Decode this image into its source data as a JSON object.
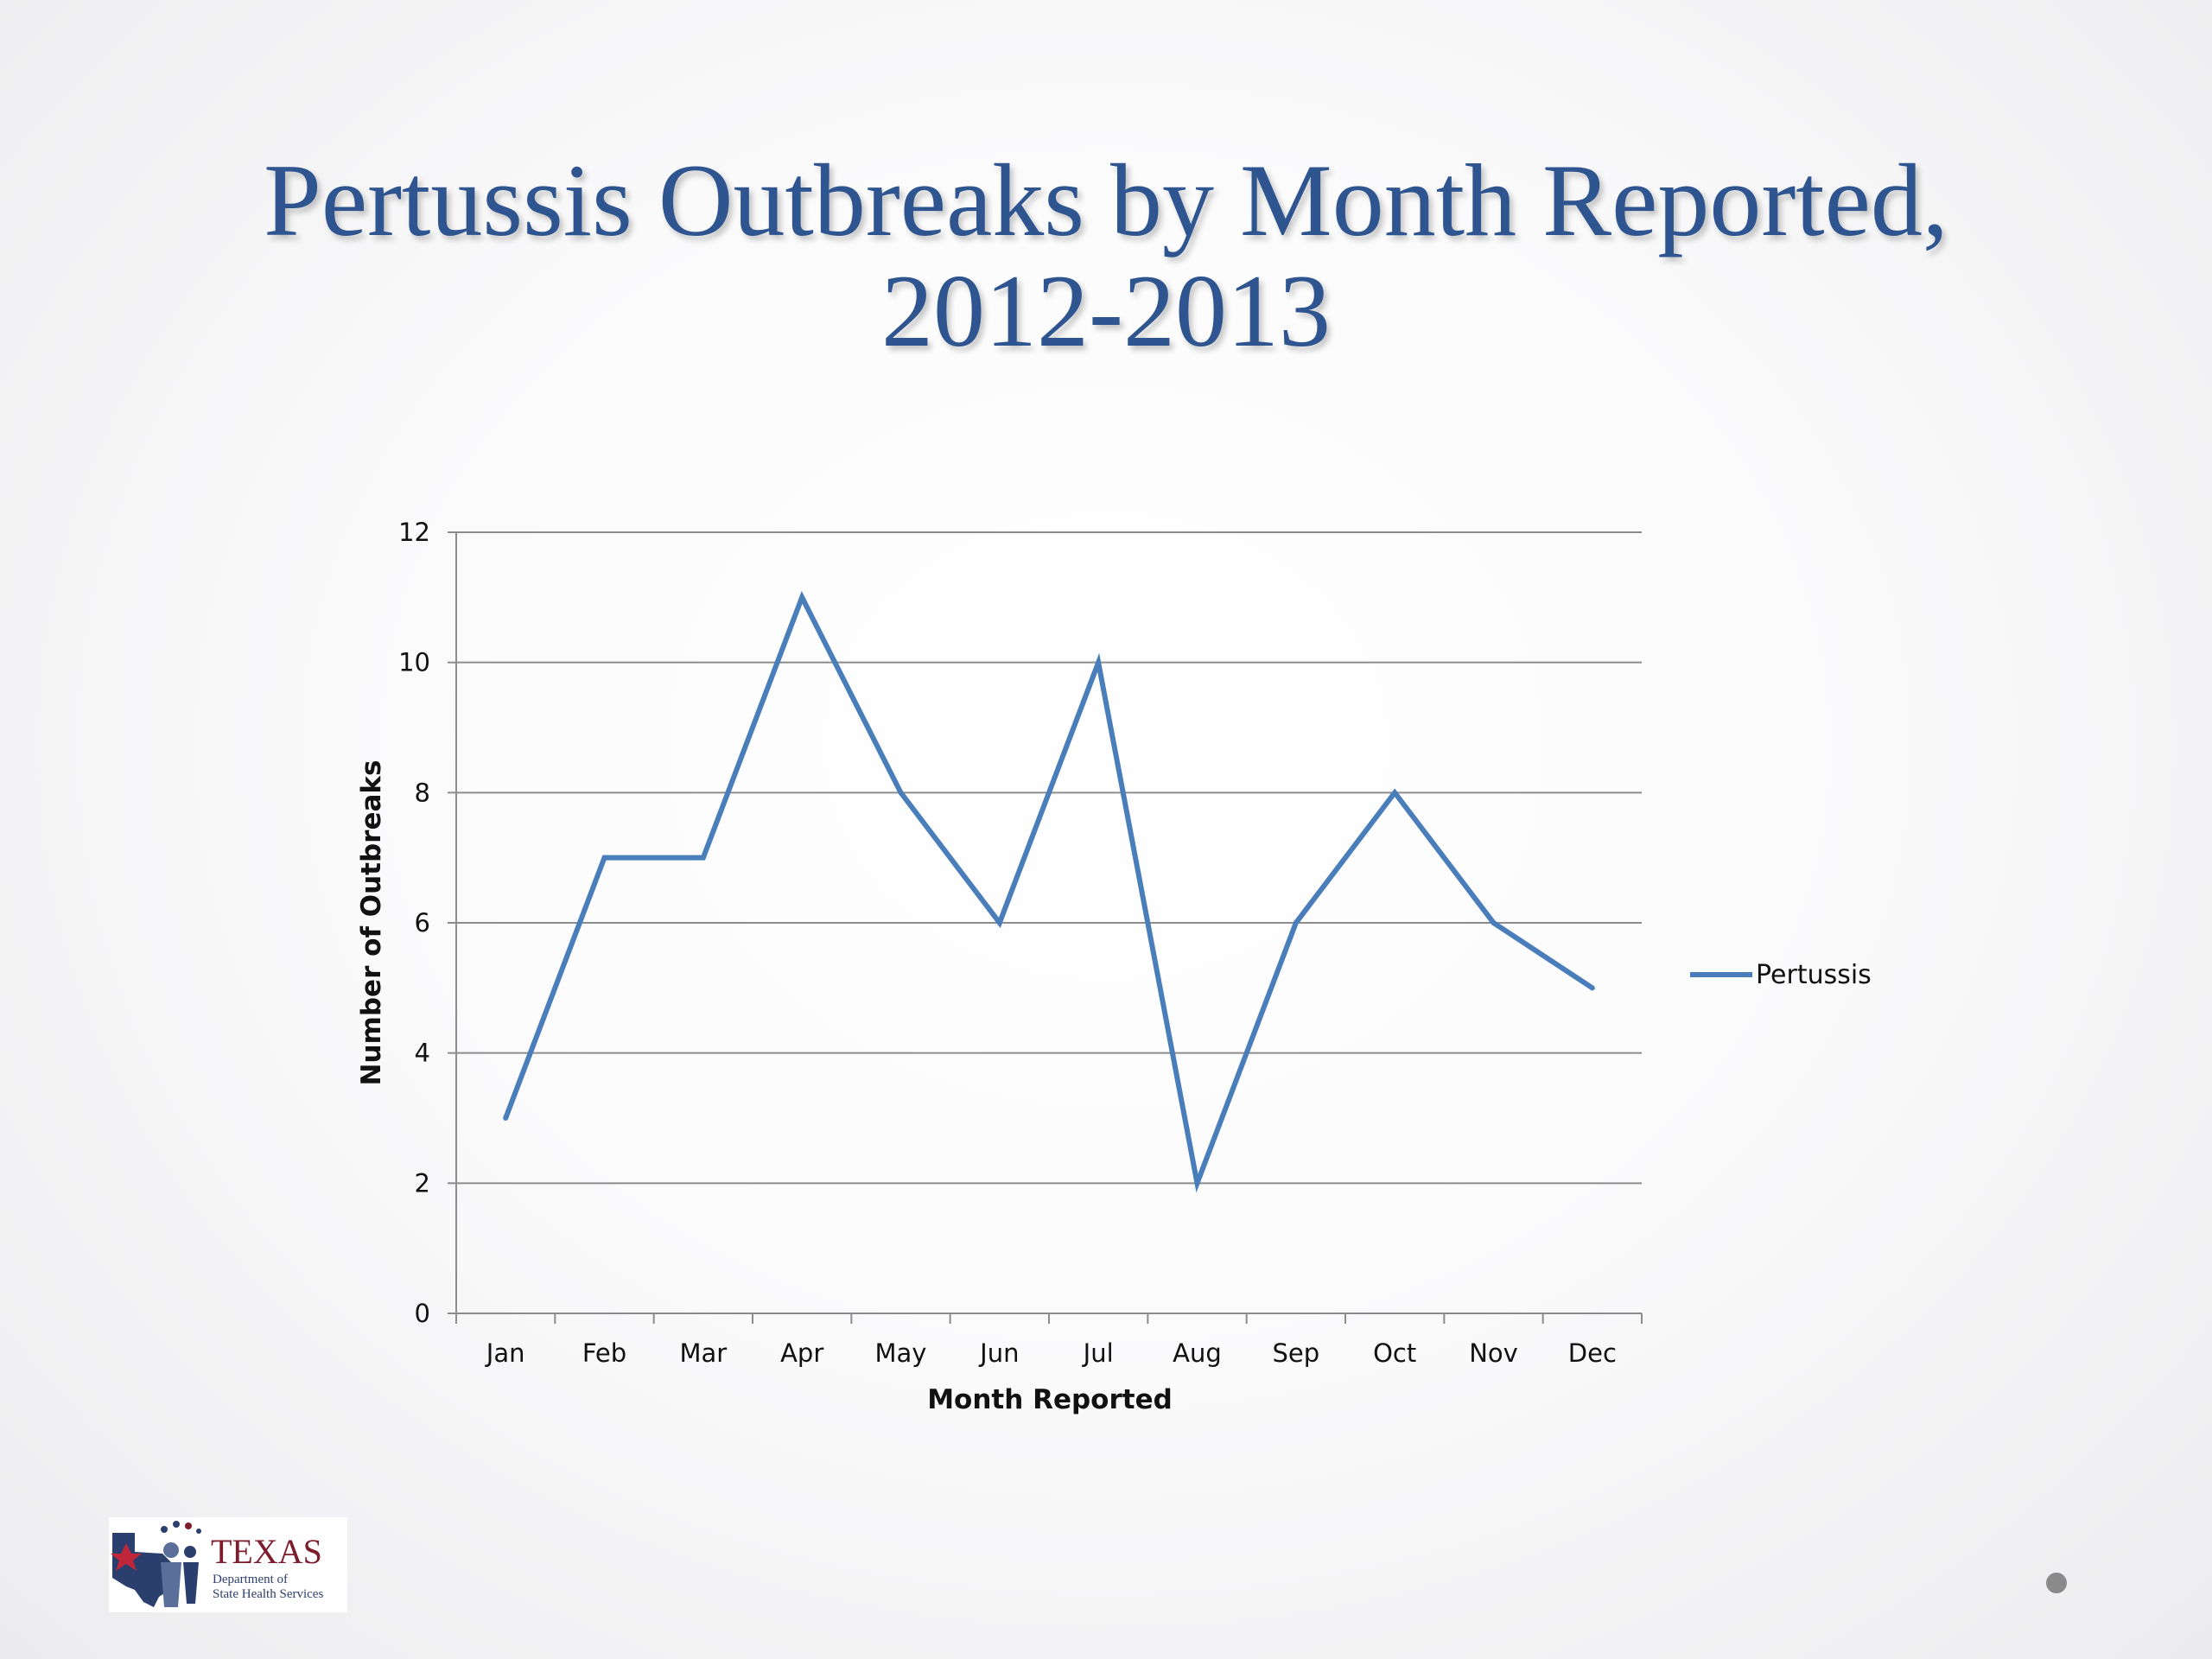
{
  "slide": {
    "title_line1": "Pertussis Outbreaks by Month Reported,",
    "title_line2": "2012-2013"
  },
  "logo": {
    "word": "TEXAS",
    "sub_line1": "Department of",
    "sub_line2": "State Health Services"
  },
  "colors": {
    "title": "#2f5590",
    "series": "#4a7ebb",
    "grid": "#8c8c8c"
  },
  "chart_data": {
    "type": "line",
    "categories": [
      "Jan",
      "Feb",
      "Mar",
      "Apr",
      "May",
      "Jun",
      "Jul",
      "Aug",
      "Sep",
      "Oct",
      "Nov",
      "Dec"
    ],
    "series": [
      {
        "name": "Pertussis",
        "values": [
          3,
          7,
          7,
          11,
          8,
          6,
          10,
          2,
          6,
          8,
          6,
          5
        ],
        "color": "#4a7ebb"
      }
    ],
    "xlabel": "Month Reported",
    "ylabel": "Number of Outbreaks",
    "ylim": [
      0,
      12
    ],
    "yticks": [
      0,
      2,
      4,
      6,
      8,
      10,
      12
    ],
    "grid": true,
    "legend": "right"
  }
}
